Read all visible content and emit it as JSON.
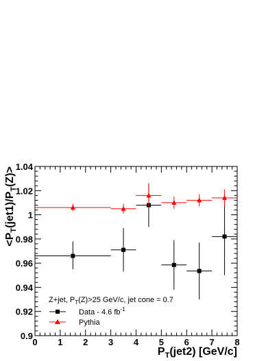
{
  "chart_data": {
    "type": "scatter",
    "title": "",
    "xlabel": "P_T(jet2) [GeV/c]",
    "ylabel": "<P_T(jet1)/P_T(Z)>",
    "xlim": [
      0,
      8
    ],
    "ylim": [
      0.9,
      1.04
    ],
    "grid": false,
    "xticks": [
      0,
      1,
      2,
      3,
      4,
      5,
      6,
      7,
      8
    ],
    "yticks": [
      0.9,
      0.92,
      0.94,
      0.96,
      0.98,
      1.0,
      1.02,
      1.04
    ],
    "ytick_labels": [
      "0.9",
      "0.92",
      "0.94",
      "0.96",
      "0.98",
      "1",
      "1.02",
      "1.04"
    ],
    "legend_position": "bottom-left",
    "annotation": "Z+jet, P_T(Z)>25 GeV/c, jet cone = 0.7",
    "series": [
      {
        "name": "Data - 4.6 fb^-1",
        "color": "#000000",
        "marker": "square",
        "points": [
          {
            "x": 1.5,
            "xerr": [
              0,
              3
            ],
            "y": 0.966,
            "yerr": [
              0.955,
              0.978
            ]
          },
          {
            "x": 3.5,
            "xerr": [
              3,
              4
            ],
            "y": 0.971,
            "yerr": [
              0.953,
              0.989
            ]
          },
          {
            "x": 4.5,
            "xerr": [
              4,
              5
            ],
            "y": 1.008,
            "yerr": [
              0.99,
              1.026
            ]
          },
          {
            "x": 5.5,
            "xerr": [
              5,
              6
            ],
            "y": 0.9585,
            "yerr": [
              0.938,
              0.979
            ]
          },
          {
            "x": 6.5,
            "xerr": [
              6,
              7
            ],
            "y": 0.9535,
            "yerr": [
              0.93,
              0.977
            ]
          },
          {
            "x": 7.5,
            "xerr": [
              7,
              8
            ],
            "y": 0.982,
            "yerr": [
              0.95,
              1.014
            ]
          }
        ]
      },
      {
        "name": "Pythia",
        "color": "#ff0000",
        "marker": "triangle",
        "points": [
          {
            "x": 1.5,
            "xerr": [
              0,
              3
            ],
            "y": 1.006,
            "yerr": [
              1.003,
              1.009
            ]
          },
          {
            "x": 3.5,
            "xerr": [
              3,
              4
            ],
            "y": 1.005,
            "yerr": [
              1.001,
              1.009
            ]
          },
          {
            "x": 4.5,
            "xerr": [
              4,
              5
            ],
            "y": 1.016,
            "yerr": [
              1.007,
              1.025
            ]
          },
          {
            "x": 5.5,
            "xerr": [
              5,
              6
            ],
            "y": 1.01,
            "yerr": [
              1.005,
              1.015
            ]
          },
          {
            "x": 6.5,
            "xerr": [
              6,
              7
            ],
            "y": 1.012,
            "yerr": [
              1.007,
              1.017
            ]
          },
          {
            "x": 7.5,
            "xerr": [
              7,
              8
            ],
            "y": 1.014,
            "yerr": [
              1.007,
              1.021
            ]
          }
        ]
      }
    ]
  }
}
